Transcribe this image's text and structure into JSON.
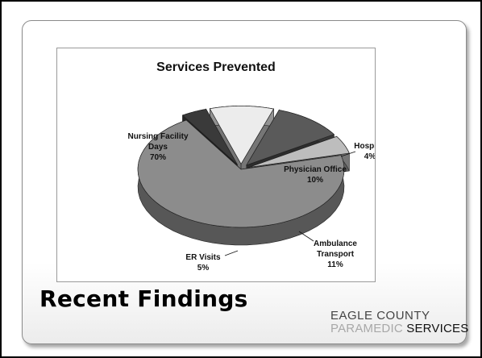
{
  "slide": {
    "headline": "Recent Findings",
    "logo": {
      "line1": "EAGLE COUNTY",
      "line2_part1": "PARAMEDIC",
      "line2_part2": " SERVICES"
    }
  },
  "chart_data": {
    "type": "pie",
    "title": "Services Prevented",
    "style": "3d-exploded",
    "slices": [
      {
        "label_lines": [
          "Nursing Facility",
          "Days"
        ],
        "percent_label": "70%",
        "value": 70,
        "color": "#8c8c8c"
      },
      {
        "label_lines": [
          "Hospital"
        ],
        "percent_label": "4%",
        "value": 4,
        "color": "#3a3a3a"
      },
      {
        "label_lines": [
          "Physician Office"
        ],
        "percent_label": "10%",
        "value": 10,
        "color": "#ececec"
      },
      {
        "label_lines": [
          "Ambulance",
          "Transport"
        ],
        "percent_label": "11%",
        "value": 11,
        "color": "#5a5a5a"
      },
      {
        "label_lines": [
          "ER Visits"
        ],
        "percent_label": "5%",
        "value": 5,
        "color": "#bdbdbd"
      }
    ]
  }
}
